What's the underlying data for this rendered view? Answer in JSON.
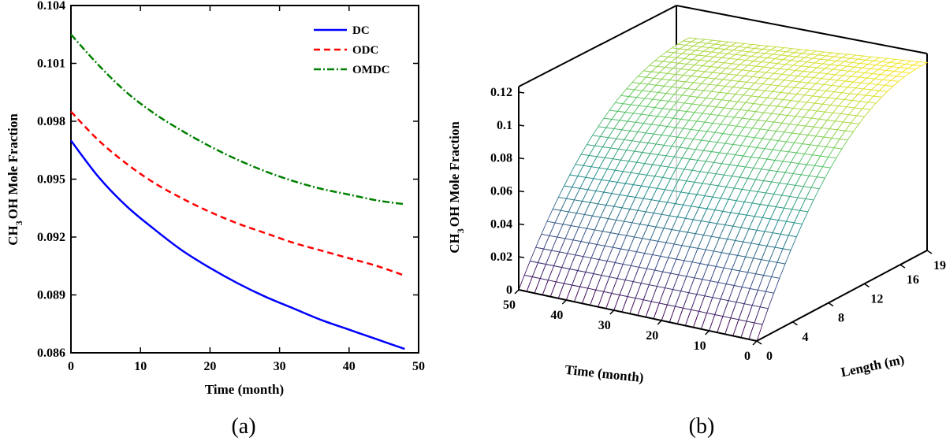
{
  "chart_data": [
    {
      "type": "line",
      "panel_label": "(a)",
      "xlabel": "Time (month)",
      "ylabel": {
        "base": "CH",
        "sub": "3",
        "rest": "OH Mole Fraction"
      },
      "xlim": [
        0,
        50
      ],
      "ylim": [
        0.086,
        0.104
      ],
      "xticks": [
        0,
        10,
        20,
        30,
        40,
        50
      ],
      "xtick_labels": [
        "0",
        "10",
        "20",
        "30",
        "40",
        "50"
      ],
      "yticks": [
        0.086,
        0.089,
        0.092,
        0.095,
        0.098,
        0.101,
        0.104
      ],
      "ytick_labels": [
        "0.086",
        "0.089",
        "0.092",
        "0.095",
        "0.098",
        "0.101",
        "0.104"
      ],
      "legend_position": "top-right",
      "x": [
        0,
        4,
        8,
        12,
        16,
        20,
        24,
        28,
        32,
        36,
        40,
        44,
        48
      ],
      "series": [
        {
          "name": "DC",
          "color": "#0000ff",
          "dash": "solid",
          "values": [
            0.097,
            0.0951,
            0.0936,
            0.0924,
            0.0913,
            0.0904,
            0.0896,
            0.0889,
            0.0883,
            0.0877,
            0.0872,
            0.0867,
            0.0862
          ]
        },
        {
          "name": "ODC",
          "color": "#ff0000",
          "dash": "dashed",
          "values": [
            0.0985,
            0.097,
            0.0958,
            0.0948,
            0.094,
            0.0933,
            0.0927,
            0.0922,
            0.0917,
            0.0913,
            0.0909,
            0.0905,
            0.09
          ]
        },
        {
          "name": "OMDC",
          "color": "#008000",
          "dash": "dashdot",
          "values": [
            0.1025,
            0.1009,
            0.0995,
            0.0984,
            0.0975,
            0.0967,
            0.096,
            0.0954,
            0.0949,
            0.0945,
            0.0942,
            0.0939,
            0.0937
          ]
        }
      ]
    },
    {
      "type": "surface",
      "panel_label": "(b)",
      "zlabel": {
        "base": "CH",
        "sub": "3",
        "rest": "OH Mole Fraction"
      },
      "xlabel": "Time (month)",
      "ylabel": "Length (m)",
      "time_range": [
        0,
        50
      ],
      "length_range": [
        0,
        19
      ],
      "z_range": [
        0,
        0.12
      ],
      "time_ticks": [
        0,
        10,
        20,
        30,
        40,
        50
      ],
      "length_ticks": [
        0,
        4,
        8,
        12,
        16,
        19
      ],
      "z_ticks": [
        0,
        0.02,
        0.04,
        0.06,
        0.08,
        0.1,
        0.12
      ],
      "z_tick_labels": [
        "0",
        "0.02",
        "0.04",
        "0.06",
        "0.08",
        "0.1",
        "0.12"
      ],
      "grid_time_count": 31,
      "grid_length_count": 31,
      "max_fraction_fresh": 0.114,
      "max_fraction_aged": 0.098,
      "colormap": [
        "#440154",
        "#3b528b",
        "#21918c",
        "#5ec962",
        "#fde725"
      ]
    }
  ]
}
